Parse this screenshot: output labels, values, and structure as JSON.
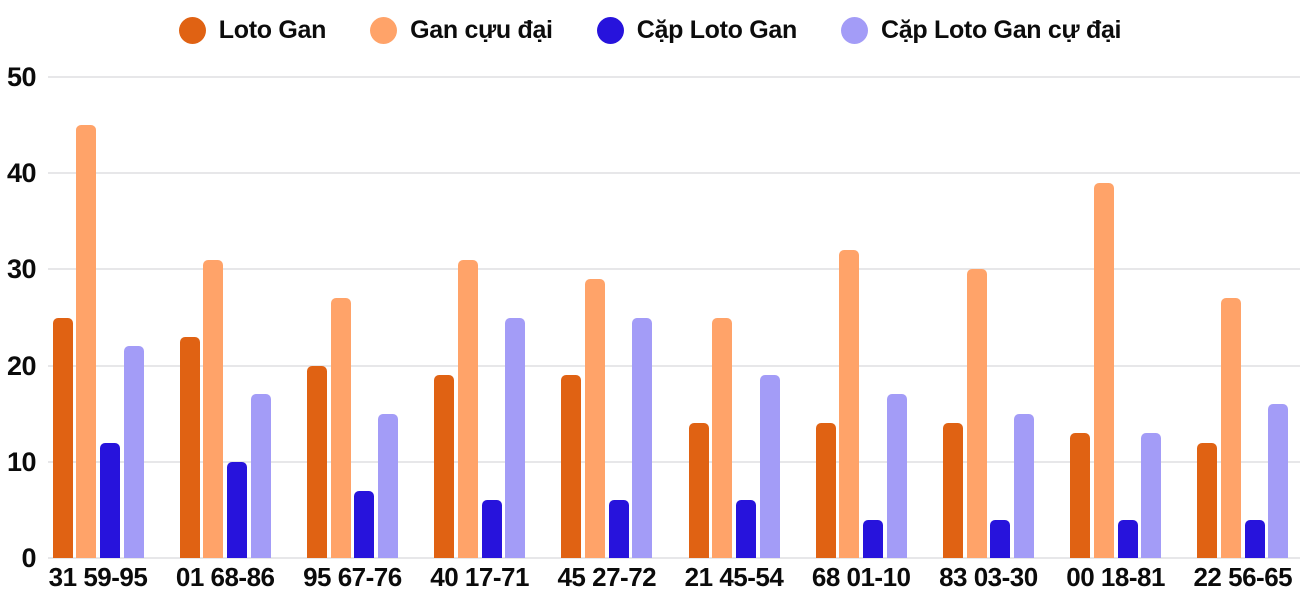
{
  "chart_data": {
    "type": "bar",
    "title": "",
    "xlabel": "",
    "ylabel": "",
    "ylim": [
      0,
      50
    ],
    "yticks": [
      0,
      10,
      20,
      30,
      40,
      50
    ],
    "grid": true,
    "legend_position": "top",
    "categories": [
      "31 59-95",
      "01 68-86",
      "95 67-76",
      "40 17-71",
      "45 27-72",
      "21 45-54",
      "68 01-10",
      "83 03-30",
      "00 18-81",
      "22 56-65"
    ],
    "series": [
      {
        "name": "Loto Gan",
        "color": "#E06213",
        "values": [
          25,
          23,
          20,
          19,
          19,
          14,
          14,
          14,
          13,
          12
        ]
      },
      {
        "name": "Gan cựu đại",
        "color": "#FFA369",
        "values": [
          45,
          31,
          27,
          31,
          29,
          25,
          32,
          30,
          39,
          27
        ]
      },
      {
        "name": "Cặp Loto Gan",
        "color": "#2713DC",
        "values": [
          12,
          10,
          7,
          6,
          6,
          6,
          4,
          4,
          4,
          4
        ]
      },
      {
        "name": "Cặp Loto Gan cự đại",
        "color": "#A39CF7",
        "values": [
          22,
          17,
          15,
          25,
          25,
          19,
          17,
          15,
          13,
          16
        ]
      }
    ],
    "colors": {
      "grid": "#E7E7E9",
      "text": "#0B0B0B",
      "background": "#FFFFFF"
    }
  }
}
